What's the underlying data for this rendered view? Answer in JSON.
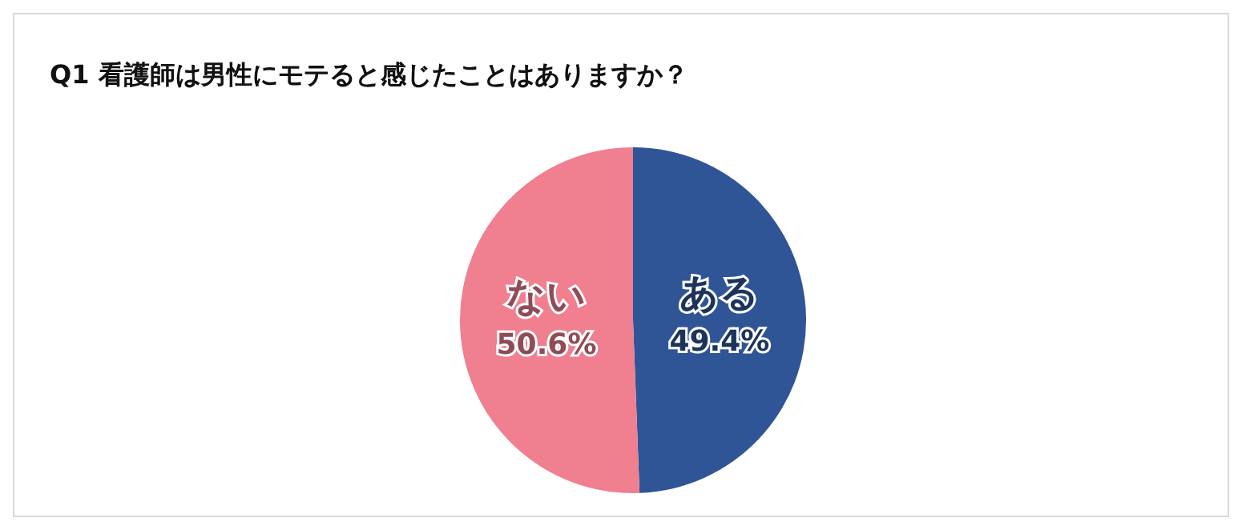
{
  "chart_data": {
    "type": "pie",
    "title": "Q1 看護師は男性にモテると感じたことはありますか？",
    "categories": [
      "ある",
      "ない"
    ],
    "values": [
      49.4,
      50.6
    ],
    "colors": [
      "#2f5597",
      "#f07f8f"
    ],
    "value_labels": [
      "49.4%",
      "50.6%"
    ],
    "legend": false
  }
}
